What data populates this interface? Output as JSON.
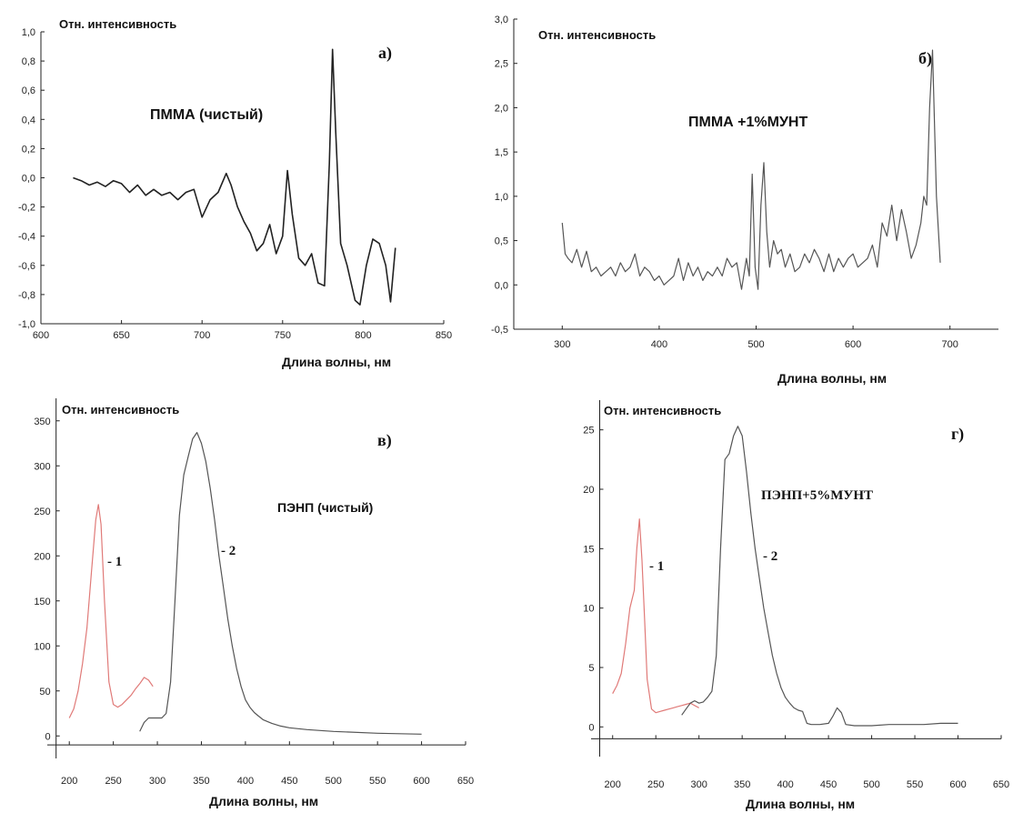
{
  "chart_data": [
    {
      "id": "a",
      "type": "line",
      "panel_label": "а)",
      "ylabel": "Отн. интенсивность",
      "xlabel": "Длина волны, нм",
      "annotation": "ПММА (чистый)",
      "xlim": [
        600,
        850
      ],
      "ylim": [
        -1.0,
        1.0
      ],
      "xticks": [
        "600",
        "650",
        "700",
        "750",
        "800",
        "850"
      ],
      "yticks": [
        "-1,0",
        "-0,8",
        "-0,6",
        "-0,4",
        "-0,2",
        "0,0",
        "0,2",
        "0,4",
        "0,6",
        "0,8",
        "1,0"
      ],
      "grid": false,
      "series": [
        {
          "color": "#222222",
          "x": [
            620,
            625,
            630,
            635,
            640,
            645,
            650,
            655,
            660,
            665,
            670,
            675,
            680,
            685,
            690,
            695,
            700,
            705,
            710,
            715,
            718,
            722,
            726,
            730,
            734,
            738,
            742,
            746,
            750,
            753,
            756,
            760,
            764,
            768,
            772,
            776,
            779,
            781,
            783,
            786,
            790,
            795,
            798,
            802,
            806,
            810,
            814,
            817,
            820
          ],
          "y": [
            0.0,
            -0.02,
            -0.05,
            -0.03,
            -0.06,
            -0.02,
            -0.04,
            -0.1,
            -0.05,
            -0.12,
            -0.08,
            -0.12,
            -0.1,
            -0.15,
            -0.1,
            -0.08,
            -0.27,
            -0.15,
            -0.1,
            0.03,
            -0.05,
            -0.2,
            -0.3,
            -0.38,
            -0.5,
            -0.45,
            -0.32,
            -0.52,
            -0.4,
            0.05,
            -0.25,
            -0.55,
            -0.6,
            -0.52,
            -0.72,
            -0.74,
            0.1,
            0.88,
            0.3,
            -0.45,
            -0.6,
            -0.84,
            -0.87,
            -0.6,
            -0.42,
            -0.45,
            -0.6,
            -0.85,
            -0.48
          ]
        }
      ]
    },
    {
      "id": "b",
      "type": "line",
      "panel_label": "б)",
      "ylabel": "Отн. интенсивность",
      "xlabel": "Длина волны, нм",
      "annotation": "ПММА +1%МУНТ",
      "xlim": [
        250,
        750
      ],
      "ylim": [
        -0.5,
        3.0
      ],
      "xticks": [
        "300",
        "400",
        "500",
        "600",
        "700"
      ],
      "yticks": [
        "-0,5",
        "0,0",
        "0,5",
        "1,0",
        "1,5",
        "2,0",
        "2,5",
        "3,0"
      ],
      "grid": false,
      "series": [
        {
          "color": "#555555",
          "x": [
            300,
            303,
            306,
            310,
            315,
            320,
            325,
            330,
            335,
            340,
            345,
            350,
            355,
            360,
            365,
            370,
            375,
            380,
            385,
            390,
            395,
            400,
            405,
            410,
            415,
            420,
            425,
            430,
            435,
            440,
            445,
            450,
            455,
            460,
            465,
            470,
            475,
            480,
            485,
            490,
            493,
            496,
            499,
            502,
            505,
            508,
            511,
            514,
            518,
            522,
            526,
            530,
            535,
            540,
            545,
            550,
            555,
            560,
            565,
            570,
            575,
            580,
            585,
            590,
            595,
            600,
            605,
            610,
            615,
            620,
            625,
            630,
            635,
            640,
            645,
            650,
            655,
            660,
            665,
            670,
            673,
            676,
            679,
            682,
            686,
            690
          ],
          "y": [
            0.7,
            0.35,
            0.3,
            0.25,
            0.4,
            0.2,
            0.38,
            0.15,
            0.2,
            0.1,
            0.15,
            0.2,
            0.1,
            0.25,
            0.15,
            0.2,
            0.35,
            0.1,
            0.2,
            0.15,
            0.05,
            0.1,
            0.0,
            0.05,
            0.1,
            0.3,
            0.05,
            0.25,
            0.1,
            0.2,
            0.05,
            0.15,
            0.1,
            0.2,
            0.1,
            0.3,
            0.2,
            0.25,
            -0.05,
            0.3,
            0.1,
            1.25,
            0.2,
            -0.05,
            0.9,
            1.38,
            0.6,
            0.2,
            0.5,
            0.35,
            0.4,
            0.2,
            0.35,
            0.15,
            0.2,
            0.35,
            0.25,
            0.4,
            0.3,
            0.15,
            0.35,
            0.15,
            0.3,
            0.2,
            0.3,
            0.35,
            0.2,
            0.25,
            0.3,
            0.45,
            0.2,
            0.7,
            0.55,
            0.9,
            0.5,
            0.85,
            0.6,
            0.3,
            0.45,
            0.7,
            1.0,
            0.9,
            2.0,
            2.65,
            1.0,
            0.25
          ]
        }
      ]
    },
    {
      "id": "v",
      "type": "line",
      "panel_label": "в)",
      "ylabel": "Отн. интенсивность",
      "xlabel": "Длина волны, нм",
      "annotation": "ПЭНП (чистый)",
      "xlim": [
        175,
        650
      ],
      "ylim": [
        -25,
        375
      ],
      "xticks": [
        "200",
        "250",
        "300",
        "350",
        "400",
        "450",
        "500",
        "550",
        "600",
        "650"
      ],
      "yticks": [
        "0",
        "50",
        "100",
        "150",
        "200",
        "250",
        "300",
        "350"
      ],
      "grid": false,
      "series": [
        {
          "name": "- 1",
          "color": "#e07a78",
          "x": [
            200,
            205,
            210,
            215,
            220,
            225,
            230,
            233,
            236,
            240,
            245,
            250,
            255,
            260,
            265,
            270,
            275,
            280,
            285,
            290,
            295
          ],
          "y": [
            20,
            30,
            50,
            80,
            120,
            180,
            240,
            257,
            235,
            150,
            60,
            35,
            32,
            35,
            40,
            45,
            52,
            58,
            65,
            62,
            55
          ]
        },
        {
          "name": "- 2",
          "color": "#555555",
          "x": [
            280,
            285,
            290,
            295,
            300,
            305,
            310,
            315,
            320,
            325,
            330,
            335,
            340,
            345,
            350,
            355,
            360,
            365,
            370,
            375,
            380,
            385,
            390,
            395,
            400,
            405,
            410,
            415,
            420,
            430,
            440,
            450,
            470,
            500,
            550,
            600
          ],
          "y": [
            5,
            15,
            20,
            20,
            20,
            20,
            25,
            60,
            150,
            245,
            290,
            310,
            330,
            337,
            325,
            305,
            275,
            240,
            200,
            165,
            130,
            100,
            75,
            55,
            40,
            32,
            26,
            22,
            18,
            14,
            11,
            9,
            7,
            5,
            3,
            2
          ]
        }
      ]
    },
    {
      "id": "g",
      "type": "line",
      "panel_label": "г)",
      "ylabel": "Отн. интенсивность",
      "xlabel": "Длина волны, нм",
      "annotation": "ПЭНП+5%МУНТ",
      "xlim": [
        175,
        650
      ],
      "ylim": [
        -2.5,
        27.5
      ],
      "xticks": [
        "200",
        "250",
        "300",
        "350",
        "400",
        "450",
        "500",
        "550",
        "600",
        "650"
      ],
      "yticks": [
        "0",
        "5",
        "10",
        "15",
        "20",
        "25"
      ],
      "grid": false,
      "series": [
        {
          "name": "- 1",
          "color": "#e07a78",
          "x": [
            200,
            205,
            210,
            215,
            220,
            225,
            228,
            231,
            234,
            237,
            240,
            245,
            250,
            255,
            260,
            265,
            270,
            275,
            280,
            285,
            290,
            295,
            300
          ],
          "y": [
            2.8,
            3.5,
            4.5,
            7.0,
            10.0,
            11.5,
            15.0,
            17.5,
            14.0,
            9.0,
            4.0,
            1.5,
            1.2,
            1.3,
            1.4,
            1.5,
            1.6,
            1.7,
            1.8,
            1.9,
            2.0,
            1.8,
            1.6
          ]
        },
        {
          "name": "- 2",
          "color": "#555555",
          "x": [
            280,
            285,
            290,
            295,
            300,
            305,
            310,
            315,
            320,
            325,
            330,
            335,
            340,
            345,
            350,
            355,
            360,
            365,
            370,
            375,
            380,
            385,
            390,
            395,
            400,
            405,
            410,
            415,
            420,
            425,
            430,
            440,
            450,
            455,
            460,
            465,
            470,
            480,
            500,
            520,
            540,
            560,
            580,
            600
          ],
          "y": [
            1.0,
            1.5,
            2.0,
            2.2,
            2.0,
            2.1,
            2.5,
            3.0,
            6.0,
            15.0,
            22.5,
            23.0,
            24.5,
            25.3,
            24.5,
            21.5,
            18.0,
            15.0,
            12.5,
            10.0,
            8.0,
            6.0,
            4.5,
            3.3,
            2.5,
            2.0,
            1.6,
            1.4,
            1.3,
            0.3,
            0.2,
            0.2,
            0.3,
            0.9,
            1.6,
            1.2,
            0.2,
            0.1,
            0.1,
            0.2,
            0.2,
            0.2,
            0.3,
            0.3
          ]
        }
      ]
    }
  ]
}
